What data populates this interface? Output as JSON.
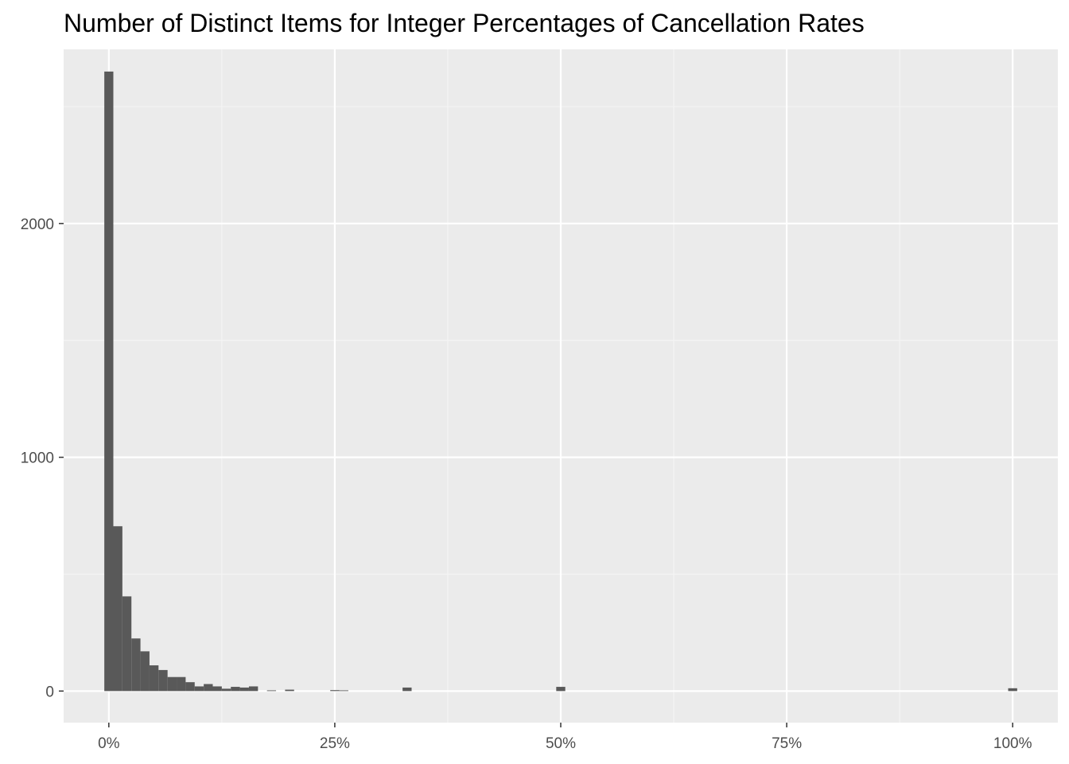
{
  "chart_data": {
    "type": "bar",
    "title": "Number of Distinct Items for Integer Percentages of Cancellation Rates",
    "xlabel": "",
    "ylabel": "",
    "x_unit": "%",
    "bin_width": 1,
    "xlim": [
      -5,
      105
    ],
    "ylim": [
      -135,
      2745
    ],
    "x_ticks": [
      0,
      25,
      50,
      75,
      100
    ],
    "x_tick_labels": [
      "0%",
      "25%",
      "50%",
      "75%",
      "100%"
    ],
    "y_ticks": [
      0,
      1000,
      2000
    ],
    "y_tick_labels": [
      "0",
      "1000",
      "2000"
    ],
    "grid": true,
    "legend": "none",
    "bins": [
      {
        "x": 0,
        "count": 2650
      },
      {
        "x": 1,
        "count": 705
      },
      {
        "x": 2,
        "count": 405
      },
      {
        "x": 3,
        "count": 225
      },
      {
        "x": 4,
        "count": 170
      },
      {
        "x": 5,
        "count": 110
      },
      {
        "x": 6,
        "count": 90
      },
      {
        "x": 7,
        "count": 60
      },
      {
        "x": 8,
        "count": 60
      },
      {
        "x": 9,
        "count": 38
      },
      {
        "x": 10,
        "count": 20
      },
      {
        "x": 11,
        "count": 30
      },
      {
        "x": 12,
        "count": 20
      },
      {
        "x": 13,
        "count": 10
      },
      {
        "x": 14,
        "count": 18
      },
      {
        "x": 15,
        "count": 15
      },
      {
        "x": 16,
        "count": 20
      },
      {
        "x": 17,
        "count": 0
      },
      {
        "x": 18,
        "count": 3
      },
      {
        "x": 19,
        "count": 0
      },
      {
        "x": 20,
        "count": 6
      },
      {
        "x": 25,
        "count": 4
      },
      {
        "x": 26,
        "count": 3
      },
      {
        "x": 33,
        "count": 15
      },
      {
        "x": 50,
        "count": 18
      },
      {
        "x": 100,
        "count": 12
      }
    ],
    "colors": {
      "bar": "#595959",
      "panel": "#ebebeb",
      "grid_major": "#ffffff",
      "grid_minor": "#f4f4f4",
      "tick": "#333333",
      "tick_label": "#4d4d4d",
      "title": "#000000"
    }
  }
}
